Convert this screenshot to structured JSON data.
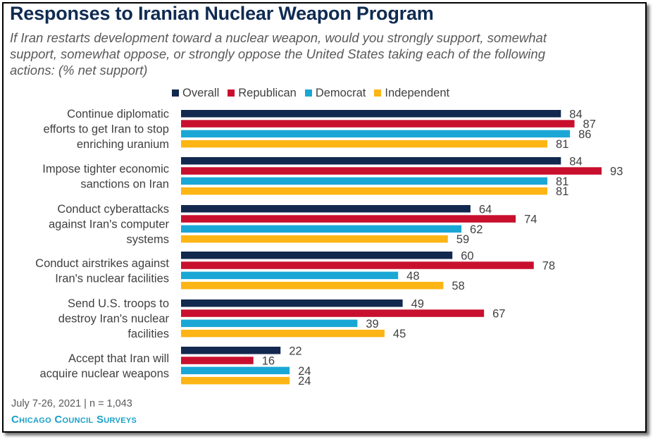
{
  "title": "Responses to Iranian Nuclear Weapon Program",
  "subtitle": "If Iran restarts development toward a nuclear weapon, would you strongly support, somewhat support, somewhat oppose, or strongly oppose the United States taking each of the following actions: (% net support)",
  "footer": {
    "date_sample": "July 7-26, 2021 | n = 1,043",
    "brand": "Chicago Council Surveys"
  },
  "colors": {
    "title": "#0f2b52",
    "Overall": "#12284f",
    "Republican": "#c8102e",
    "Democrat": "#1aa7d6",
    "Independent": "#fdb515"
  },
  "chart_data": {
    "type": "bar",
    "orientation": "horizontal",
    "title": "Responses to Iranian Nuclear Weapon Program",
    "xlabel": "",
    "ylabel": "",
    "xlim": [
      0,
      100
    ],
    "grid": false,
    "legend_position": "top",
    "categories": [
      [
        "Continue diplomatic",
        "efforts to get Iran to stop",
        "enriching uranium"
      ],
      [
        "Impose tighter economic",
        "sanctions on Iran"
      ],
      [
        "Conduct cyberattacks",
        "against Iran's computer",
        "systems"
      ],
      [
        "Conduct airstrikes against",
        "Iran's nuclear facilities"
      ],
      [
        "Send U.S. troops to",
        "destroy Iran's nuclear",
        "facilities"
      ],
      [
        "Accept that Iran will",
        "acquire nuclear weapons"
      ]
    ],
    "series": [
      {
        "name": "Overall",
        "values": [
          84,
          84,
          64,
          60,
          49,
          22
        ]
      },
      {
        "name": "Republican",
        "values": [
          87,
          93,
          74,
          78,
          67,
          16
        ]
      },
      {
        "name": "Democrat",
        "values": [
          86,
          81,
          62,
          48,
          39,
          24
        ]
      },
      {
        "name": "Independent",
        "values": [
          81,
          81,
          59,
          58,
          45,
          24
        ]
      }
    ]
  }
}
